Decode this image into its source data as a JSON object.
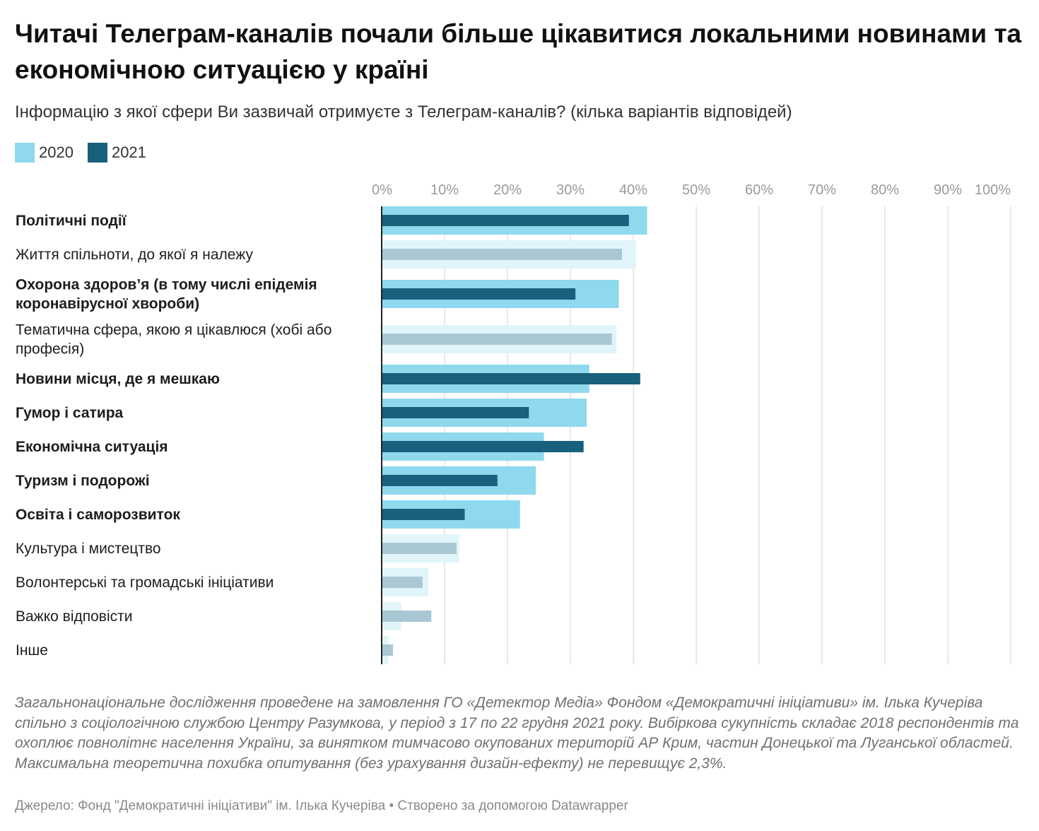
{
  "title": "Читачі Телеграм-каналів почали більше цікавитися локальними новинами та економічною ситуацією у країні",
  "subtitle": "Інформацію з якої сфери Ви зазвичай отримуєте з Телеграм-каналів? (кілька варіантів відповідей)",
  "legend": [
    {
      "label": "2020",
      "color": "#8fd9ee"
    },
    {
      "label": "2021",
      "color": "#18607c"
    }
  ],
  "notes": "Загальнонаціональне дослідження проведене на замовлення ГО «Детектор Медіа» Фондом «Демократичні ініціативи» ім. Ілька Кучеріва спільно з соціологічною службою Центру Разумкова, у період з 17 по 22 грудня 2021 року. Вибіркова сукупність складає 2018 респондентів та охоплює повнолітнє населення України, за винятком тимчасово окупованих територій АР Крим, частин Донецької та Луганської областей. Максимальна теоретична похибка опитування (без урахування дизайн-ефекту) не перевищує 2,3%.",
  "source": "Джерело: Фонд \"Демократичні ініціативи\" ім. Ілька Кучеріва • Створено за допомогою Datawrapper",
  "chart_data": {
    "type": "bar",
    "orientation": "horizontal",
    "xlim": [
      0,
      100
    ],
    "ticks": [
      "0%",
      "10%",
      "20%",
      "30%",
      "40%",
      "50%",
      "60%",
      "70%",
      "80%",
      "90%",
      "100%"
    ],
    "grid": true,
    "legend_position": "top-left",
    "categories": [
      {
        "lines": [
          "Політичні події"
        ],
        "highlight": true
      },
      {
        "lines": [
          "Життя спільноти, до якої я належу"
        ],
        "highlight": false
      },
      {
        "lines": [
          "Охорона здоров’я (в тому числі епідемія",
          "коронавірусної хвороби)"
        ],
        "highlight": true
      },
      {
        "lines": [
          "Тематична сфера, якою я цікавлюся (хобі або",
          "професія)"
        ],
        "highlight": false
      },
      {
        "lines": [
          "Новини місця, де я мешкаю"
        ],
        "highlight": true
      },
      {
        "lines": [
          "Гумор і сатира"
        ],
        "highlight": true
      },
      {
        "lines": [
          "Економічна ситуація"
        ],
        "highlight": true
      },
      {
        "lines": [
          "Туризм і подорожі"
        ],
        "highlight": true
      },
      {
        "lines": [
          "Освіта і саморозвиток"
        ],
        "highlight": true
      },
      {
        "lines": [
          "Культура і мистецтво"
        ],
        "highlight": false
      },
      {
        "lines": [
          "Волонтерські та громадські ініціативи"
        ],
        "highlight": false
      },
      {
        "lines": [
          "Важко відповісти"
        ],
        "highlight": false
      },
      {
        "lines": [
          "Інше"
        ],
        "highlight": false
      }
    ],
    "series": [
      {
        "name": "2020",
        "values": [
          42.2,
          40.4,
          37.7,
          37.3,
          33.0,
          32.6,
          25.8,
          24.5,
          22.0,
          12.3,
          7.4,
          3.1,
          1.1
        ]
      },
      {
        "name": "2021",
        "values": [
          39.3,
          38.2,
          30.8,
          36.6,
          41.1,
          23.4,
          32.1,
          18.4,
          13.2,
          11.9,
          6.5,
          7.9,
          1.8
        ]
      }
    ],
    "colors": {
      "2020": "#8fd9ee",
      "2021": "#18607c",
      "2020_muted": "#e1f4fa",
      "2021_muted": "#a9c8d4"
    }
  }
}
